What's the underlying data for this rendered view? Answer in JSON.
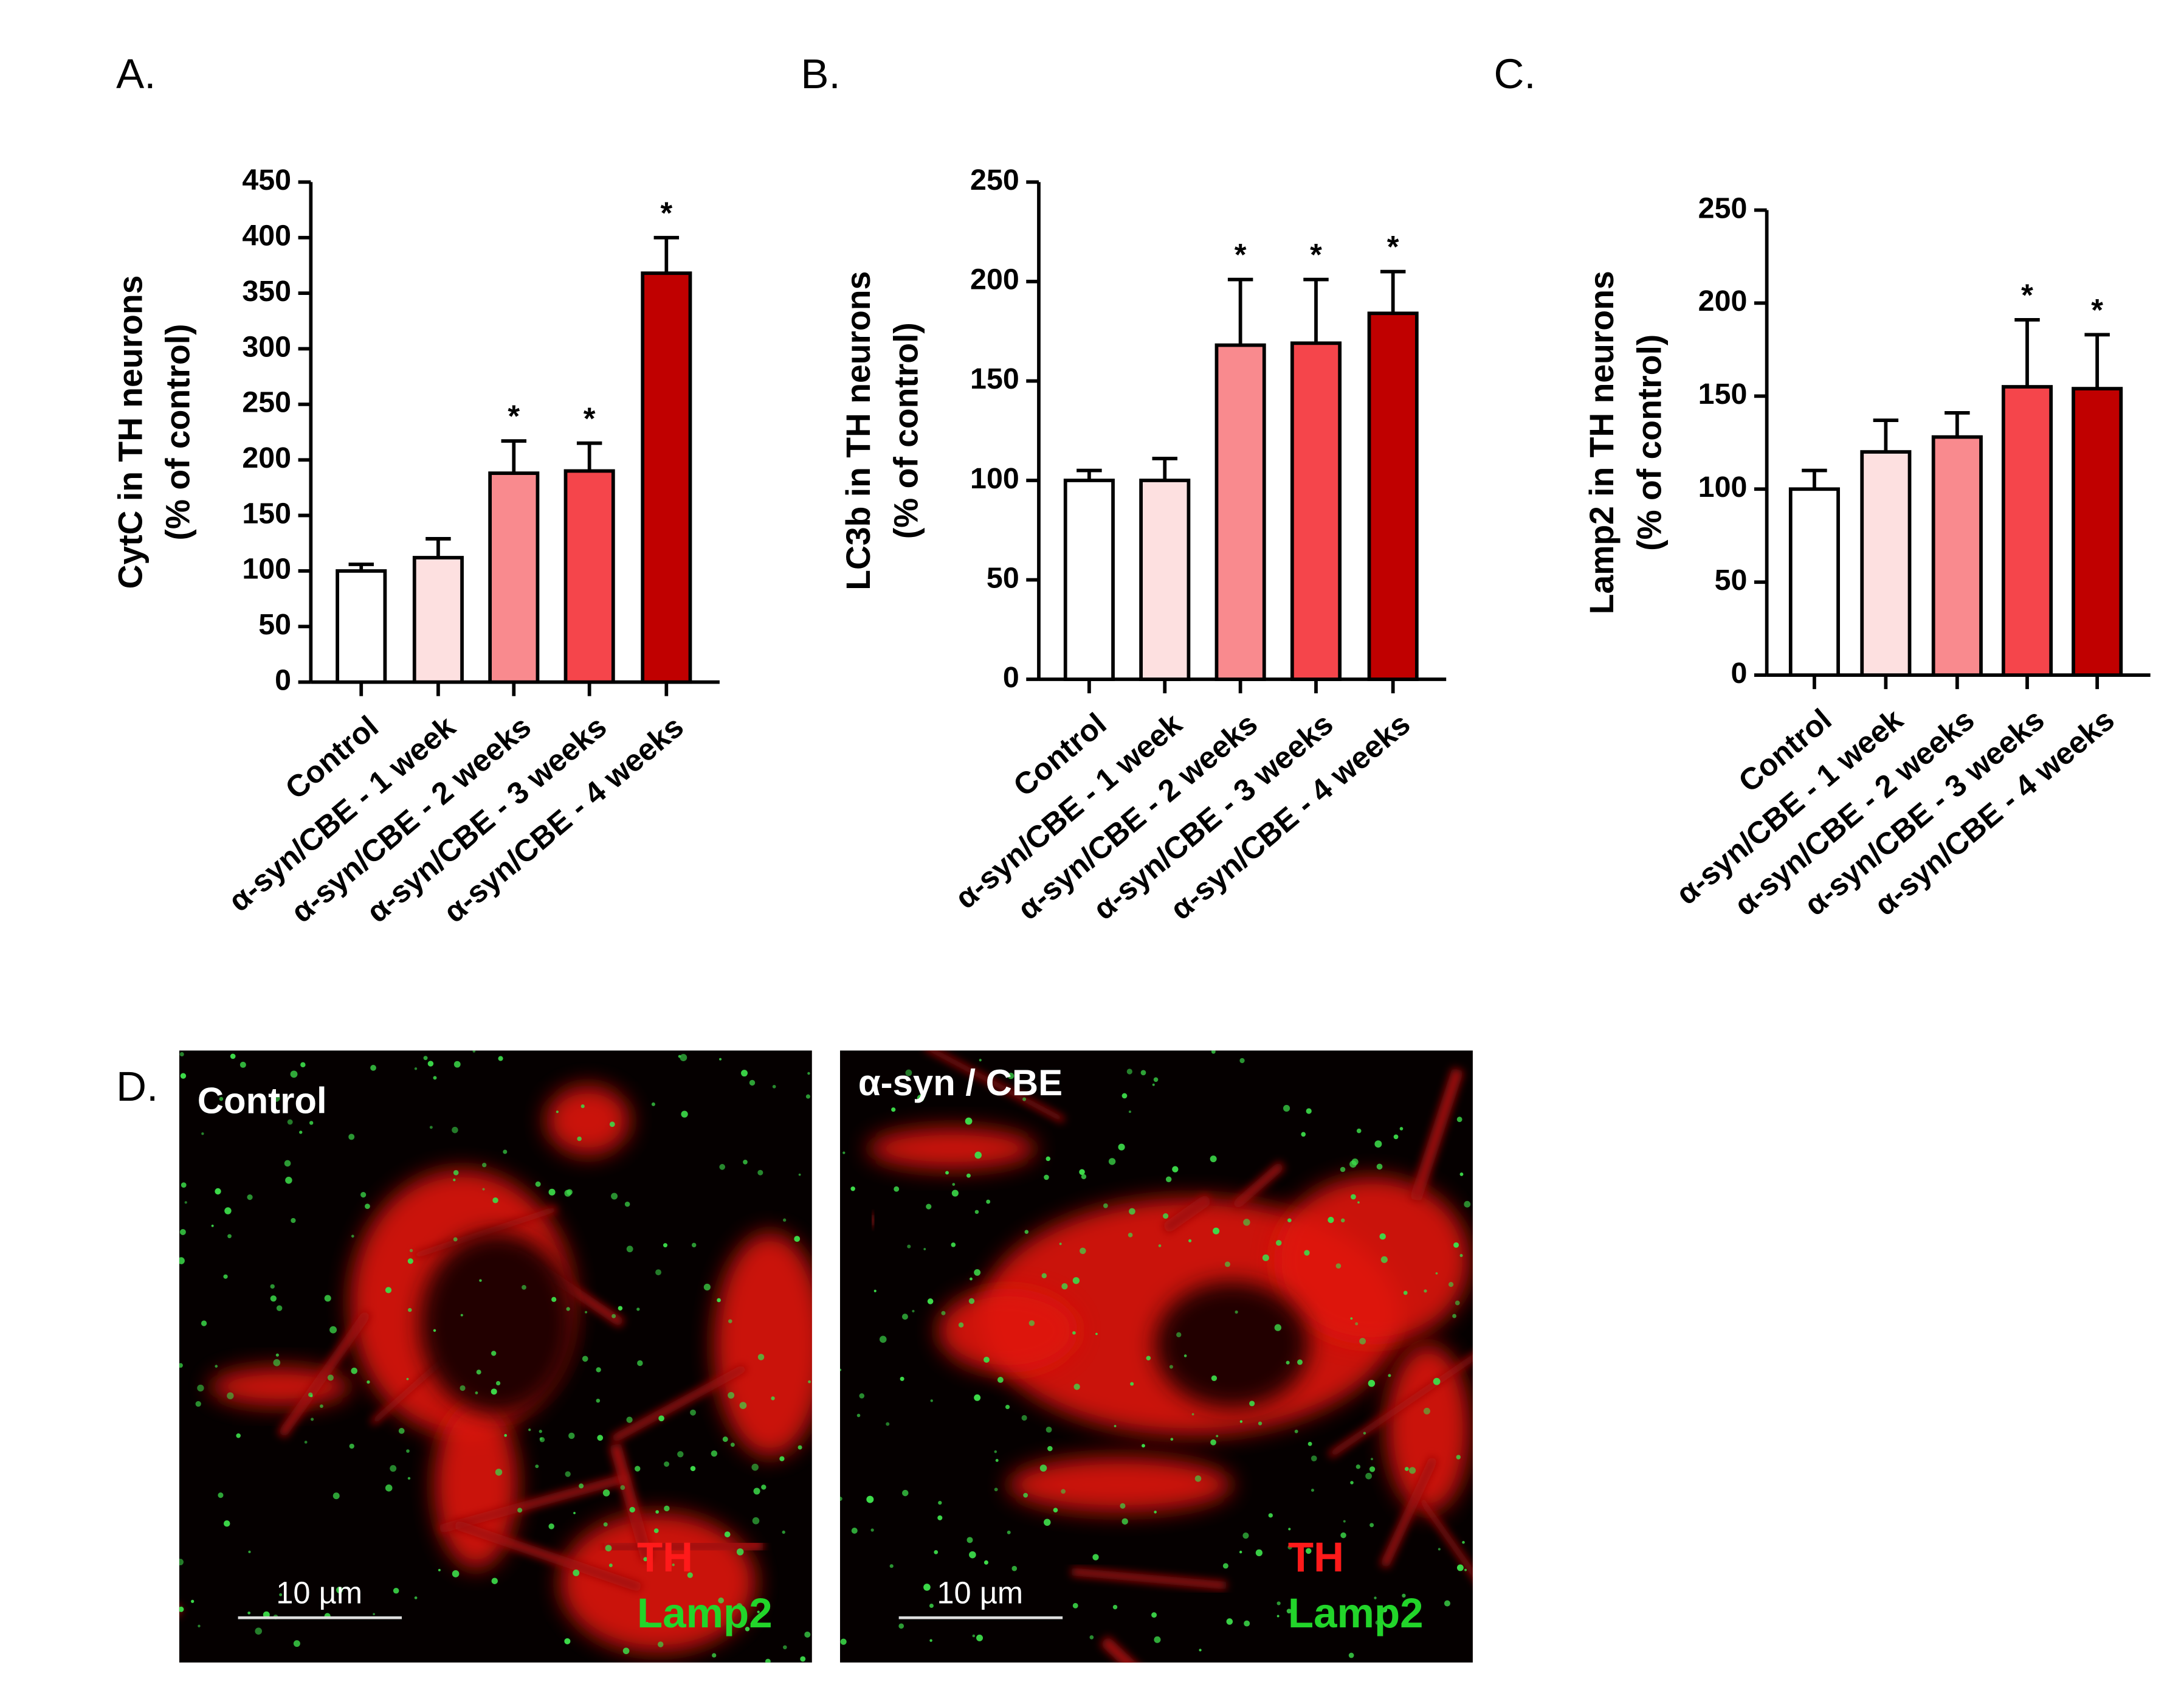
{
  "chart_data": [
    {
      "type": "bar",
      "panel_label": "A.",
      "ylabel": [
        "CytC in TH neurons",
        "(% of control)"
      ],
      "categories": [
        "Control",
        "α-syn/CBE - 1 week",
        "α-syn/CBE - 2 weeks",
        "α-syn/CBE - 3 weeks",
        "α-syn/CBE - 4 weeks"
      ],
      "values": [
        100,
        112,
        188,
        190,
        368
      ],
      "errors": [
        6,
        17,
        29,
        25,
        32
      ],
      "colors": [
        "#ffffff",
        "#fde0e0",
        "#f98a8e",
        "#f5454b",
        "#c00000"
      ],
      "significance_labels": [
        null,
        null,
        "*",
        "*",
        "*"
      ],
      "ylim": [
        0,
        450
      ],
      "yticks": [
        0,
        50,
        100,
        150,
        200,
        250,
        300,
        350,
        400,
        450
      ]
    },
    {
      "type": "bar",
      "panel_label": "B.",
      "ylabel": [
        "LC3b in TH neurons",
        "(% of control)"
      ],
      "categories": [
        "Control",
        "α-syn/CBE - 1 week",
        "α-syn/CBE - 2 weeks",
        "α-syn/CBE - 3 weeks",
        "α-syn/CBE - 4 weeks"
      ],
      "values": [
        100,
        100,
        168,
        169,
        184
      ],
      "errors": [
        5,
        11,
        33,
        32,
        21
      ],
      "colors": [
        "#ffffff",
        "#fde0e0",
        "#f98a8e",
        "#f5454b",
        "#c00000"
      ],
      "significance_labels": [
        null,
        null,
        "*",
        "*",
        "*"
      ],
      "ylim": [
        0,
        250
      ],
      "yticks": [
        0,
        50,
        100,
        150,
        200,
        250
      ]
    },
    {
      "type": "bar",
      "panel_label": "C.",
      "ylabel": [
        "Lamp2 in TH neurons",
        "(% of control)"
      ],
      "categories": [
        "Control",
        "α-syn/CBE - 1 week",
        "α-syn/CBE - 2 weeks",
        "α-syn/CBE - 3 weeks",
        "α-syn/CBE - 4 weeks"
      ],
      "values": [
        100,
        120,
        128,
        155,
        154
      ],
      "errors": [
        10,
        17,
        13,
        36,
        29
      ],
      "colors": [
        "#ffffff",
        "#fde0e0",
        "#f98a8e",
        "#f5454b",
        "#c00000"
      ],
      "significance_labels": [
        null,
        null,
        null,
        "*",
        "*"
      ],
      "ylim": [
        0,
        250
      ],
      "yticks": [
        0,
        50,
        100,
        150,
        200,
        250
      ]
    }
  ],
  "panel_d": {
    "label": "D.",
    "images": [
      {
        "title": "Control",
        "scale_bar": "10 µm",
        "channels": [
          "TH",
          "Lamp2"
        ]
      },
      {
        "title": "α-syn / CBE",
        "scale_bar": "10 µm",
        "channels": [
          "TH",
          "Lamp2"
        ]
      }
    ]
  }
}
